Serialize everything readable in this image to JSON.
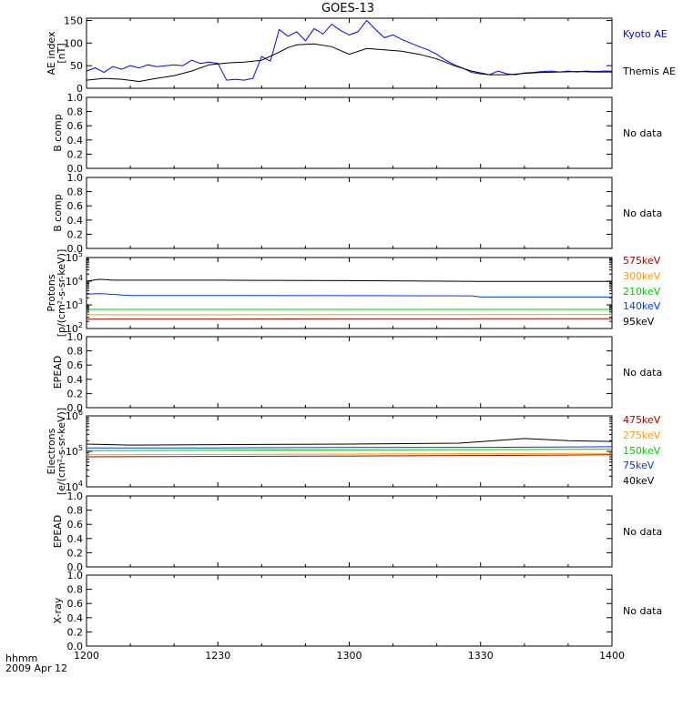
{
  "title": "GOES-13",
  "x_axis": {
    "unit_label": "hhmm",
    "date_label": "2009 Apr 12",
    "ticks": [
      "1200",
      "1230",
      "1300",
      "1330",
      "1400"
    ],
    "tick_minutes": [
      0,
      30,
      60,
      90,
      120
    ],
    "range_minutes": [
      0,
      120
    ]
  },
  "colors": {
    "kyoto": "#0000ff",
    "themis": "#000000",
    "575keV": "#aa0000",
    "300keV": "#ff9900",
    "210keV": "#00cc00",
    "140keV": "#0033ff",
    "95keV": "#000000",
    "475keV": "#aa0000",
    "275keV": "#ff9900",
    "150keV": "#00cc00",
    "75keV": "#0033ff",
    "40keV": "#000000"
  },
  "chart_data": [
    {
      "type": "line",
      "panel": "ae",
      "ylabel": [
        "AE index",
        "[nT]"
      ],
      "ylim": [
        0,
        155
      ],
      "yticks": [
        0,
        50,
        100,
        150
      ],
      "log": false,
      "series": [
        {
          "name": "Kyoto AE",
          "color_key": "kyoto",
          "x": [
            0,
            2,
            4,
            6,
            8,
            10,
            12,
            14,
            16,
            18,
            20,
            22,
            24,
            26,
            28,
            30,
            32,
            34,
            36,
            38,
            40,
            42,
            44,
            46,
            48,
            50,
            52,
            54,
            56,
            58,
            60,
            62,
            64,
            66,
            68,
            70,
            72,
            74,
            76,
            78,
            80,
            82,
            84,
            86,
            88,
            90,
            92,
            94,
            96,
            98,
            100,
            102,
            104,
            106,
            108,
            110,
            112,
            114,
            116,
            118,
            120
          ],
          "y": [
            38,
            45,
            35,
            48,
            42,
            50,
            45,
            52,
            48,
            50,
            52,
            50,
            62,
            55,
            58,
            55,
            18,
            20,
            18,
            22,
            70,
            60,
            130,
            115,
            125,
            105,
            132,
            120,
            142,
            128,
            118,
            125,
            150,
            130,
            112,
            118,
            108,
            100,
            92,
            85,
            75,
            62,
            52,
            44,
            35,
            32,
            30,
            38,
            32,
            30,
            34,
            35,
            37,
            38,
            36,
            38,
            36,
            38,
            37,
            38,
            38
          ]
        },
        {
          "name": "Themis AE",
          "color_key": "themis",
          "x": [
            0,
            4,
            8,
            12,
            16,
            20,
            24,
            28,
            32,
            36,
            40,
            44,
            46,
            48,
            52,
            56,
            60,
            64,
            68,
            72,
            76,
            80,
            84,
            88,
            92,
            96,
            100,
            104,
            108,
            112,
            116,
            120
          ],
          "y": [
            18,
            22,
            20,
            15,
            22,
            28,
            38,
            52,
            56,
            58,
            62,
            80,
            90,
            96,
            98,
            92,
            75,
            88,
            85,
            82,
            75,
            65,
            50,
            38,
            30,
            30,
            33,
            35,
            36,
            37,
            36,
            36
          ]
        }
      ]
    },
    {
      "type": "line",
      "panel": "b1",
      "ylabel": [
        "B comp"
      ],
      "ylim": [
        0,
        1
      ],
      "yticks": [
        0.0,
        0.2,
        0.4,
        0.6,
        0.8,
        1.0
      ],
      "ytick_labels": [
        "0.0",
        "0.2",
        "0.4",
        "0.6",
        "0.8",
        "1.0"
      ],
      "status": "No data"
    },
    {
      "type": "line",
      "panel": "b2",
      "ylabel": [
        "B comp"
      ],
      "ylim": [
        0,
        1
      ],
      "yticks": [
        0.0,
        0.2,
        0.4,
        0.6,
        0.8,
        1.0
      ],
      "ytick_labels": [
        "0.0",
        "0.2",
        "0.4",
        "0.6",
        "0.8",
        "1.0"
      ],
      "status": "No data"
    },
    {
      "type": "line",
      "panel": "protons",
      "ylabel": [
        "Protons",
        "[p/(cm²-s-sr-keV)]"
      ],
      "ylim_exp": [
        2,
        5
      ],
      "log": true,
      "ytick_exps": [
        2,
        3,
        4,
        5
      ],
      "series": [
        {
          "name": "575keV",
          "color_key": "575keV",
          "x": [
            0,
            30,
            60,
            90,
            120
          ],
          "y": [
            250,
            252,
            255,
            258,
            260
          ]
        },
        {
          "name": "300keV",
          "color_key": "300keV",
          "x": [
            0,
            30,
            60,
            90,
            120
          ],
          "y": [
            380,
            382,
            385,
            388,
            390
          ]
        },
        {
          "name": "210keV",
          "color_key": "210keV",
          "x": [
            0,
            30,
            60,
            90,
            120
          ],
          "y": [
            640,
            640,
            640,
            640,
            640
          ]
        },
        {
          "name": "140keV",
          "color_key": "140keV",
          "x": [
            0,
            3,
            10,
            30,
            60,
            88,
            90,
            120
          ],
          "y": [
            2800,
            3000,
            2500,
            2500,
            2450,
            2400,
            2150,
            2150
          ]
        },
        {
          "name": "95keV",
          "color_key": "95keV",
          "x": [
            0,
            3,
            6,
            30,
            60,
            90,
            120
          ],
          "y": [
            10000,
            12000,
            11000,
            11000,
            10500,
            9800,
            9800
          ]
        }
      ]
    },
    {
      "type": "line",
      "panel": "epead1",
      "ylabel": [
        "EPEAD"
      ],
      "ylim": [
        0,
        1
      ],
      "yticks": [
        0.0,
        0.2,
        0.4,
        0.6,
        0.8,
        1.0
      ],
      "ytick_labels": [
        "0.0",
        "0.2",
        "0.4",
        "0.6",
        "0.8",
        "1.0"
      ],
      "status": "No data"
    },
    {
      "type": "line",
      "panel": "electrons",
      "ylabel": [
        "Electrons",
        "[e/(cm²-s-sr-keV)]"
      ],
      "ylim_exp": [
        4,
        6
      ],
      "log": true,
      "ytick_exps": [
        4,
        5,
        6
      ],
      "series": [
        {
          "name": "475keV",
          "color_key": "475keV",
          "x": [
            0,
            30,
            60,
            90,
            120
          ],
          "y": [
            70000,
            72000,
            74000,
            76000,
            80000
          ]
        },
        {
          "name": "275keV",
          "color_key": "275keV",
          "x": [
            0,
            30,
            60,
            90,
            120
          ],
          "y": [
            80000,
            82000,
            84000,
            86000,
            88000
          ]
        },
        {
          "name": "150keV",
          "color_key": "150keV",
          "x": [
            0,
            30,
            60,
            90,
            120
          ],
          "y": [
            105000,
            108000,
            110000,
            112000,
            115000
          ]
        },
        {
          "name": "75keV",
          "color_key": "75keV",
          "x": [
            0,
            30,
            60,
            90,
            120
          ],
          "y": [
            125000,
            125000,
            128000,
            130000,
            135000
          ]
        },
        {
          "name": "40keV",
          "color_key": "40keV",
          "x": [
            0,
            10,
            30,
            60,
            85,
            100,
            110,
            120
          ],
          "y": [
            160000,
            150000,
            155000,
            160000,
            170000,
            230000,
            200000,
            190000
          ]
        }
      ]
    },
    {
      "type": "line",
      "panel": "epead2",
      "ylabel": [
        "EPEAD"
      ],
      "ylim": [
        0,
        1
      ],
      "yticks": [
        0.0,
        0.2,
        0.4,
        0.6,
        0.8,
        1.0
      ],
      "ytick_labels": [
        "0.0",
        "0.2",
        "0.4",
        "0.6",
        "0.8",
        "1.0"
      ],
      "status": "No data"
    },
    {
      "type": "line",
      "panel": "xray",
      "ylabel": [
        "X-ray"
      ],
      "ylim": [
        0,
        1
      ],
      "yticks": [
        0.0,
        0.2,
        0.4,
        0.6,
        0.8,
        1.0
      ],
      "ytick_labels": [
        "0.0",
        "0.2",
        "0.4",
        "0.6",
        "0.8",
        "1.0"
      ],
      "status": "No data"
    }
  ]
}
